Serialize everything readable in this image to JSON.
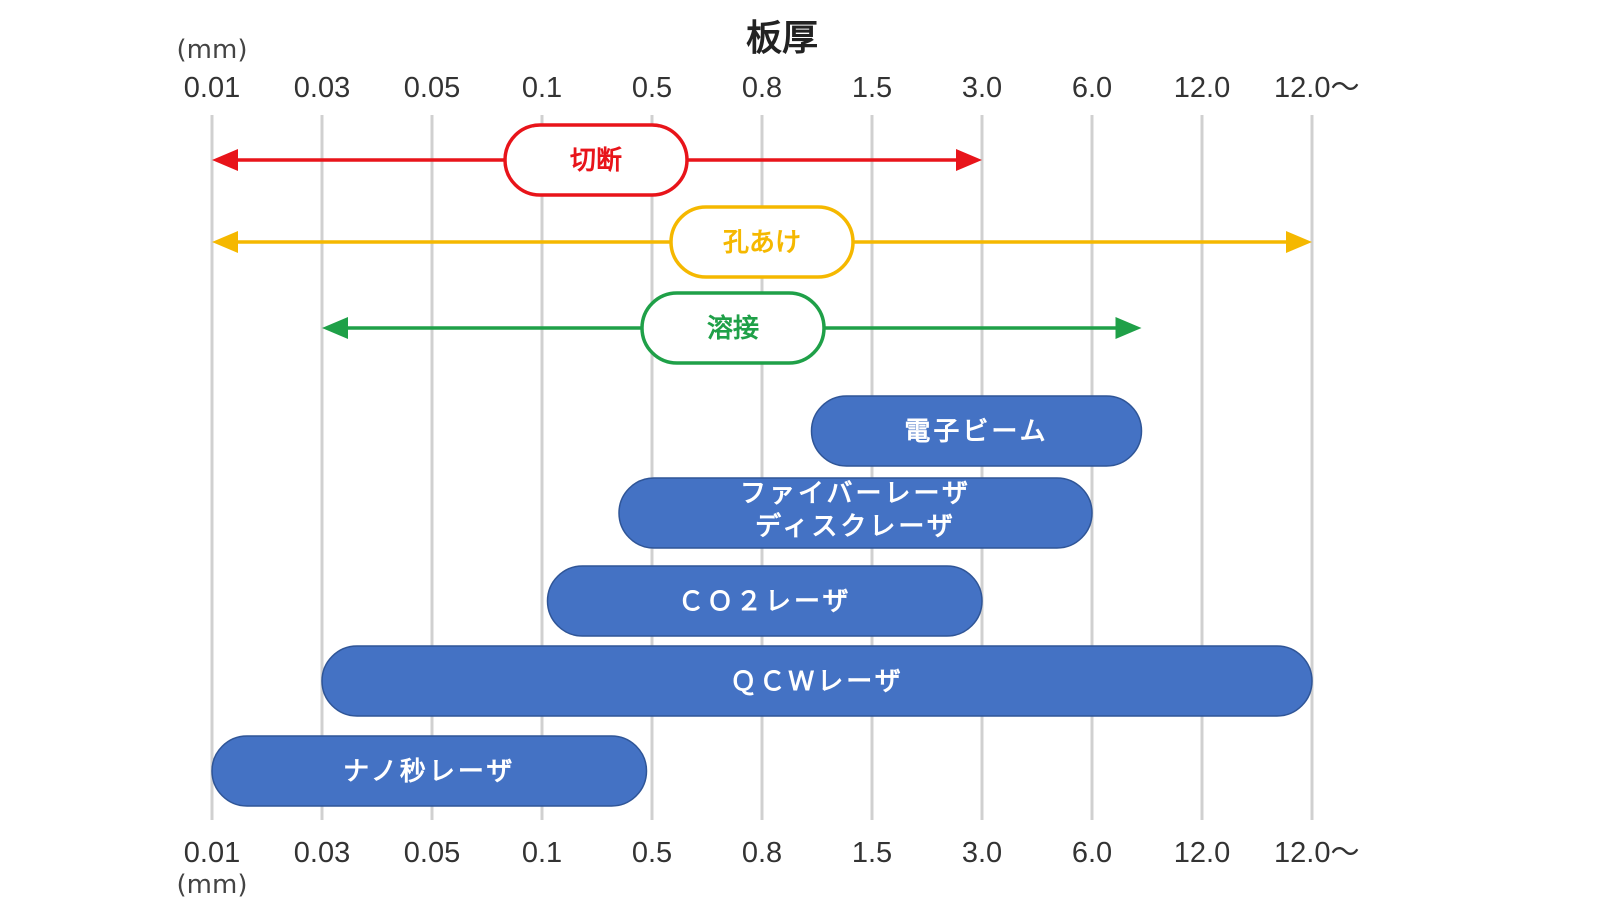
{
  "chart_data": {
    "type": "range-bar",
    "title": "板厚",
    "unit_label": "(mm)",
    "categories": [
      "0.01",
      "0.03",
      "0.05",
      "0.1",
      "0.5",
      "0.8",
      "1.5",
      "3.0",
      "6.0",
      "12.0",
      "12.0〜"
    ],
    "axis_position": "top and bottom",
    "grid": true,
    "applications": [
      {
        "name": "切断",
        "from": "0.01",
        "to": "3.0",
        "color": "#e8141a"
      },
      {
        "name": "孔あけ",
        "from": "0.01",
        "to": "12.0〜",
        "color": "#f5b800"
      },
      {
        "name": "溶接",
        "from": "0.03",
        "to": "between 6.0 and 12.0",
        "from_index": 1,
        "to_index": 8.45,
        "color": "#1fa048"
      }
    ],
    "lasers": [
      {
        "name": "電子ビーム",
        "from_index": 5.45,
        "to_index": 8.45
      },
      {
        "name": [
          "ファイバーレーザ",
          "ディスクレーザ"
        ],
        "from_index": 3.7,
        "to_index": 8.0
      },
      {
        "name": "ＣＯ２レーザ",
        "from_index": 3.05,
        "to_index": 7.0
      },
      {
        "name": "ＱＣＷレーザ",
        "from_index": 1.0,
        "to_index": 10.0
      },
      {
        "name": "ナノ秒レーザ",
        "from_index": 0.0,
        "to_index": 3.95
      }
    ],
    "bar_color": "#4472c4"
  }
}
